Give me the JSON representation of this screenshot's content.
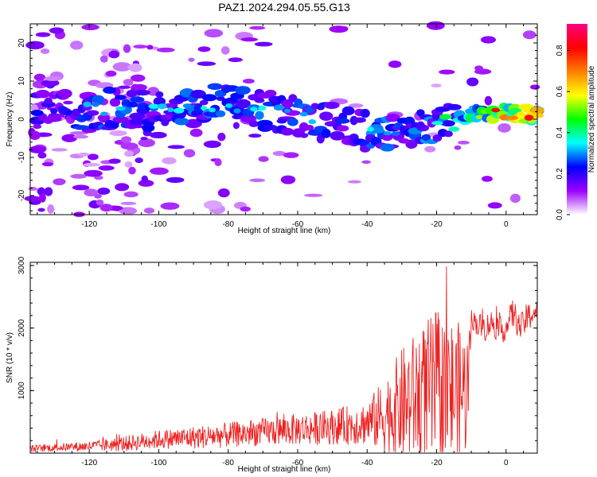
{
  "figure_title": "PAZ1.2024.294.05.55.G13",
  "chart_data": [
    {
      "type": "heatmap",
      "xlabel": "Height of straight line (km)",
      "ylabel": "Frequency (Hz)",
      "xlim": [
        -137,
        9
      ],
      "ylim": [
        -25,
        25
      ],
      "x_ticks": [
        -120,
        -100,
        -80,
        -60,
        -40,
        -20,
        0
      ],
      "y_ticks": [
        -20,
        -10,
        0,
        10,
        20
      ],
      "colorbar": {
        "label": "Normalized spectral amplitude",
        "range": [
          0,
          0.93
        ],
        "ticks": [
          "0.0",
          "0.2",
          "0.4",
          "0.6",
          "0.8"
        ],
        "colors": [
          "#ffffff",
          "#9b00ff",
          "#0000ff",
          "#00ffff",
          "#00ff00",
          "#ffff00",
          "#ff7f00",
          "#ff0000",
          "#ff0080"
        ]
      },
      "ridge": {
        "x": [
          -130,
          -120,
          -110,
          -100,
          -90,
          -80,
          -70,
          -60,
          -50,
          -40,
          -30,
          -20,
          -10,
          0,
          8
        ],
        "frequency_hz": [
          2,
          2.5,
          3,
          2,
          3.5,
          4,
          2.5,
          1,
          -1,
          -3,
          -4,
          -1,
          1,
          2,
          1
        ],
        "amplitude": [
          0.25,
          0.32,
          0.35,
          0.33,
          0.35,
          0.36,
          0.34,
          0.33,
          0.33,
          0.36,
          0.34,
          0.37,
          0.55,
          0.8,
          0.85
        ]
      },
      "grid": false
    },
    {
      "type": "line",
      "xlabel": "Height of straight line (km)",
      "ylabel": "SNR (10 * v/v)",
      "xlim": [
        -137,
        9
      ],
      "ylim": [
        0,
        3050
      ],
      "x_ticks": [
        -120,
        -100,
        -80,
        -60,
        -40,
        -20,
        0
      ],
      "y_ticks": [
        1000,
        2000,
        3000
      ],
      "color": "#ee2222",
      "series": [
        {
          "x": [
            -137,
            -130,
            -120,
            -110,
            -100,
            -90,
            -80,
            -70,
            -60,
            -50,
            -40,
            -35,
            -30,
            -25,
            -20,
            -15,
            -11,
            -10,
            -8,
            -6,
            -4,
            -2,
            0,
            2,
            4,
            6,
            8
          ],
          "mean": [
            70,
            90,
            110,
            150,
            220,
            250,
            290,
            340,
            380,
            420,
            480,
            600,
            780,
            900,
            1000,
            950,
            1000,
            2150,
            2050,
            2000,
            2100,
            1950,
            2000,
            2250,
            2000,
            2150,
            2250
          ],
          "amplitude": [
            60,
            60,
            80,
            120,
            150,
            180,
            200,
            220,
            250,
            280,
            350,
            600,
            900,
            1100,
            1300,
            1200,
            1000,
            150,
            200,
            220,
            200,
            220,
            200,
            250,
            200,
            250,
            200
          ]
        }
      ],
      "grid": false
    }
  ]
}
